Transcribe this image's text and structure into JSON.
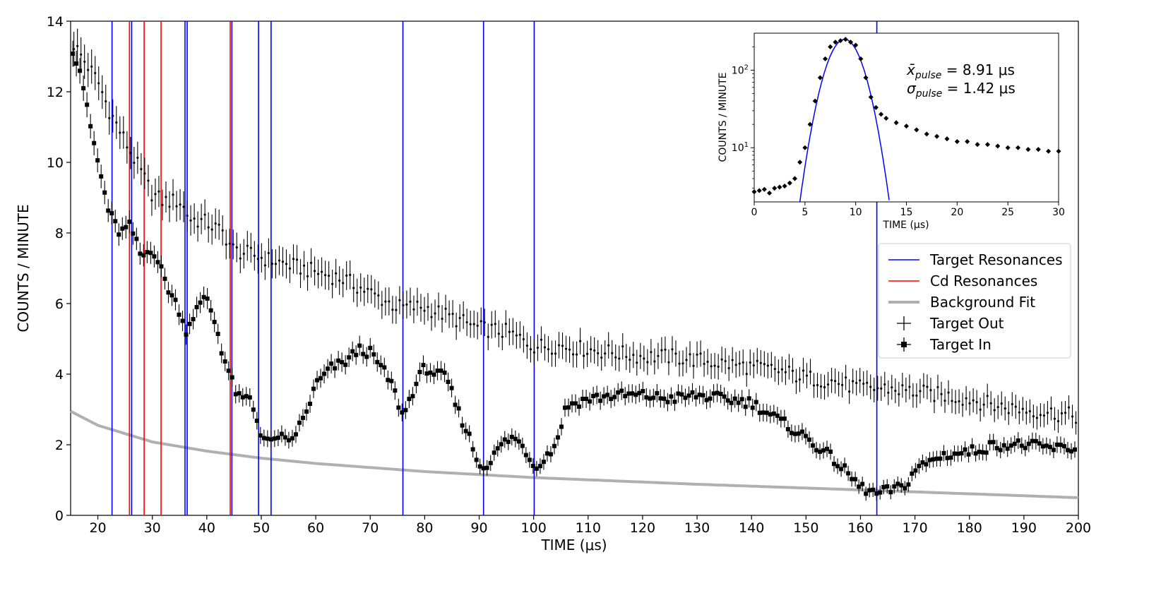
{
  "chart_data": [
    {
      "type": "scatter",
      "xlabel": "TIME (μs)",
      "ylabel": "COUNTS / MINUTE",
      "xlim": [
        15,
        200
      ],
      "ylim": [
        0,
        14
      ],
      "xticks": [
        "20",
        "30",
        "40",
        "50",
        "60",
        "70",
        "80",
        "90",
        "100",
        "110",
        "120",
        "130",
        "140",
        "150",
        "160",
        "170",
        "180",
        "190",
        "200"
      ],
      "yticks": [
        "0",
        "2",
        "4",
        "6",
        "8",
        "10",
        "12",
        "14"
      ],
      "grid": false,
      "legend_position": "upper-right",
      "legend": {
        "target_resonances": "Target Resonances",
        "cd_resonances": "Cd Resonances",
        "background_fit": "Background Fit",
        "target_out": "Target Out",
        "target_in": "Target In"
      },
      "colors": {
        "target_resonance": "#0000ff",
        "cd_resonance": "#ff0000",
        "background_fit": "#b0b0b0",
        "points": "#000000"
      },
      "target_resonances": [
        22.6,
        26.2,
        36.0,
        36.4,
        44.6,
        49.5,
        51.8,
        76.0,
        90.8,
        100.1,
        163.0
      ],
      "cd_resonances": [
        25.8,
        28.5,
        31.6,
        44.3
      ],
      "background_fit": {
        "x": [
          15,
          20,
          30,
          40,
          50,
          60,
          80,
          100,
          130,
          160,
          200
        ],
        "y": [
          2.95,
          2.55,
          2.08,
          1.82,
          1.62,
          1.47,
          1.24,
          1.07,
          0.88,
          0.72,
          0.5
        ]
      },
      "target_out": {
        "x": [
          15,
          17,
          20,
          22,
          25,
          28,
          30,
          32,
          35,
          37,
          40,
          43,
          45,
          48,
          50,
          55,
          60,
          65,
          70,
          75,
          80,
          85,
          90,
          95,
          100,
          105,
          110,
          115,
          120,
          125,
          130,
          135,
          140,
          145,
          150,
          155,
          160,
          165,
          170,
          175,
          180,
          185,
          190,
          195,
          200
        ],
        "y": [
          13.5,
          13.0,
          12.3,
          11.5,
          10.6,
          9.7,
          9.1,
          8.9,
          8.9,
          8.4,
          8.3,
          8.0,
          7.5,
          7.4,
          7.3,
          7.1,
          6.9,
          6.7,
          6.3,
          5.9,
          5.9,
          5.6,
          5.3,
          5.2,
          4.8,
          4.8,
          4.7,
          4.6,
          4.5,
          4.5,
          4.4,
          4.3,
          4.2,
          4.1,
          3.9,
          3.8,
          3.6,
          3.6,
          3.5,
          3.4,
          3.3,
          3.1,
          3.0,
          2.9,
          2.8
        ]
      },
      "target_in": {
        "x": [
          15,
          17,
          18,
          20,
          22,
          24,
          26,
          28,
          30,
          31,
          33,
          35,
          36,
          38,
          40,
          42,
          43,
          44,
          45,
          46,
          48,
          50,
          52,
          53,
          55,
          58,
          60,
          63,
          65,
          68,
          70,
          72,
          74,
          76,
          78,
          80,
          82,
          84,
          86,
          88,
          90,
          92,
          94,
          96,
          98,
          100,
          102,
          104,
          106,
          110,
          115,
          120,
          125,
          130,
          135,
          140,
          145,
          150,
          155,
          160,
          163,
          165,
          168,
          170,
          175,
          180,
          185,
          190,
          195,
          200
        ],
        "y": [
          13.4,
          12.5,
          11.5,
          10.0,
          8.6,
          8.0,
          8.2,
          7.3,
          7.6,
          7.2,
          6.4,
          5.8,
          5.2,
          5.8,
          6.2,
          5.2,
          4.5,
          4.1,
          3.6,
          3.3,
          3.3,
          2.3,
          2.0,
          2.3,
          2.0,
          2.8,
          3.7,
          4.2,
          4.3,
          4.7,
          4.6,
          4.2,
          3.7,
          2.8,
          3.6,
          4.2,
          4.0,
          3.9,
          3.0,
          2.3,
          1.4,
          1.5,
          2.0,
          2.2,
          2.0,
          1.4,
          1.6,
          2.0,
          3.1,
          3.3,
          3.4,
          3.4,
          3.3,
          3.4,
          3.3,
          3.2,
          2.7,
          2.2,
          1.6,
          0.8,
          0.6,
          0.7,
          0.8,
          1.3,
          1.7,
          1.8,
          2.0,
          2.0,
          1.9,
          1.9
        ]
      }
    },
    {
      "type": "scatter",
      "xlabel": "TIME (μs)",
      "ylabel": "COUNTS / MINUTE",
      "xlim": [
        0,
        30
      ],
      "ylim": [
        2,
        300
      ],
      "yscale": "log",
      "xticks": [
        "0",
        "5",
        "10",
        "15",
        "20",
        "25",
        "30"
      ],
      "yticks_major": [
        10,
        100
      ],
      "annotations": {
        "mean_symbol": "x̄",
        "mean_sub": "pulse",
        "mean_value": " = 8.91 μs",
        "sigma_symbol": "σ",
        "sigma_sub": "pulse",
        "sigma_value": " = 1.42 μs"
      },
      "gaussian_fit": {
        "mean": 8.91,
        "sigma": 1.42,
        "peak": 250,
        "color": "#0000ff"
      },
      "pulse": {
        "x": [
          0,
          0.5,
          1,
          1.5,
          2,
          2.5,
          3,
          3.5,
          4,
          4.5,
          5,
          5.5,
          6,
          6.5,
          7,
          7.5,
          8,
          8.5,
          9,
          9.5,
          10,
          10.5,
          11,
          11.5,
          12,
          12.5,
          13,
          14,
          15,
          16,
          17,
          18,
          19,
          20,
          21,
          22,
          23,
          24,
          25,
          26,
          27,
          28,
          29,
          30
        ],
        "y": [
          2.7,
          2.8,
          2.9,
          2.6,
          3.0,
          3.1,
          3.2,
          3.5,
          4.0,
          6.5,
          10,
          20,
          40,
          80,
          140,
          200,
          230,
          240,
          250,
          230,
          210,
          140,
          80,
          45,
          33,
          27,
          24,
          21,
          19,
          17,
          15,
          14,
          13,
          12,
          12,
          11,
          11,
          10.5,
          10,
          10,
          9.5,
          9.5,
          9,
          9
        ]
      }
    }
  ]
}
